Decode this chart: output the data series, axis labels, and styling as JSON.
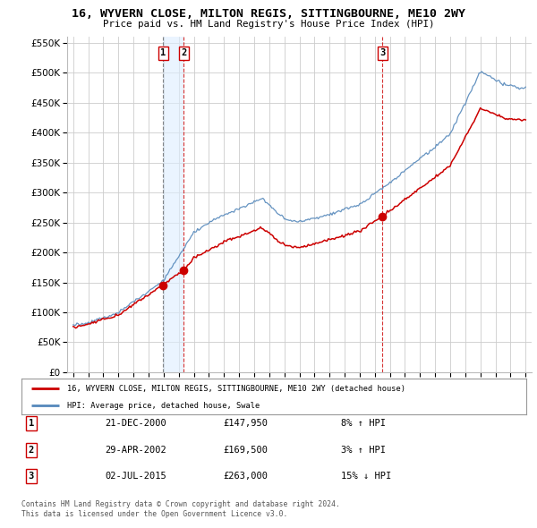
{
  "title": "16, WYVERN CLOSE, MILTON REGIS, SITTINGBOURNE, ME10 2WY",
  "subtitle": "Price paid vs. HM Land Registry's House Price Index (HPI)",
  "legend_line1": "16, WYVERN CLOSE, MILTON REGIS, SITTINGBOURNE, ME10 2WY (detached house)",
  "legend_line2": "HPI: Average price, detached house, Swale",
  "transactions": [
    {
      "num": 1,
      "date": "21-DEC-2000",
      "price": "£147,950",
      "hpi": "8% ↑ HPI",
      "year": 2000.97,
      "value": 147950
    },
    {
      "num": 2,
      "date": "29-APR-2002",
      "price": "£169,500",
      "hpi": "3% ↑ HPI",
      "year": 2002.33,
      "value": 169500
    },
    {
      "num": 3,
      "date": "02-JUL-2015",
      "price": "£263,000",
      "hpi": "15% ↓ HPI",
      "year": 2015.5,
      "value": 263000
    }
  ],
  "footnote1": "Contains HM Land Registry data © Crown copyright and database right 2024.",
  "footnote2": "This data is licensed under the Open Government Licence v3.0.",
  "red_color": "#cc0000",
  "blue_color": "#5588bb",
  "blue_fill": "#ddeeff",
  "vline1_color": "#555555",
  "vline_color": "#cc0000",
  "label_box_color": "#cc0000",
  "grid_color": "#cccccc",
  "background_color": "#ffffff",
  "ylim": [
    0,
    560000
  ],
  "yticks": [
    0,
    50000,
    100000,
    150000,
    200000,
    250000,
    300000,
    350000,
    400000,
    450000,
    500000,
    550000
  ],
  "xlim_left": 1994.6,
  "xlim_right": 2025.4
}
